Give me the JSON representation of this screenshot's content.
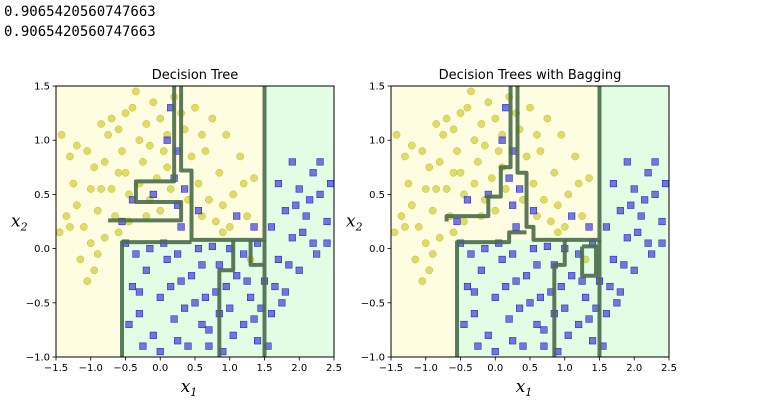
{
  "output_lines": [
    "0.9065420560747663",
    "0.9065420560747663"
  ],
  "colors": {
    "region_class0": "#fefde2",
    "region_class1": "#e2fde3",
    "class0_marker": "#c4c41c",
    "class1_marker": "#3030e0",
    "boundary": "#4a6b4a"
  },
  "chart_data": [
    {
      "type": "scatter",
      "title": "Decision Tree",
      "xlabel": "x1",
      "ylabel": "x2",
      "xlim": [
        -1.5,
        2.5
      ],
      "ylim": [
        -1.0,
        1.5
      ],
      "xticks": [
        "−1.5",
        "−1.0",
        "−0.5",
        "0.0",
        "0.5",
        "1.0",
        "1.5",
        "2.0",
        "2.5"
      ],
      "yticks": [
        "−1.0",
        "−0.5",
        "0.0",
        "0.5",
        "1.0",
        "1.5"
      ],
      "boundary": [
        [
          [
            0.2,
            1.5
          ],
          [
            0.2,
            0.62
          ],
          [
            -0.35,
            0.62
          ],
          [
            -0.35,
            0.43
          ],
          [
            0.3,
            0.43
          ],
          [
            0.3,
            0.26
          ],
          [
            -0.75,
            0.26
          ]
        ],
        [
          [
            0.3,
            1.5
          ],
          [
            0.3,
            0.72
          ],
          [
            0.45,
            0.72
          ],
          [
            0.45,
            0.26
          ],
          [
            0.45,
            0.08
          ],
          [
            1.5,
            0.08
          ],
          [
            1.5,
            1.5
          ]
        ],
        [
          [
            -0.55,
            -1.0
          ],
          [
            -0.55,
            0.06
          ],
          [
            0.45,
            0.06
          ]
        ],
        [
          [
            1.5,
            0.08
          ],
          [
            1.5,
            -1.0
          ]
        ],
        [
          [
            0.85,
            -1.0
          ],
          [
            0.85,
            -0.2
          ],
          [
            1.05,
            -0.2
          ],
          [
            1.05,
            0.08
          ]
        ],
        [
          [
            1.3,
            0.08
          ],
          [
            1.3,
            -0.15
          ],
          [
            1.5,
            -0.15
          ]
        ]
      ],
      "series": [
        {
          "marker": "circle",
          "values": "class0"
        },
        {
          "marker": "square",
          "values": "class1"
        }
      ]
    },
    {
      "type": "scatter",
      "title": "Decision Trees with Bagging",
      "xlabel": "x1",
      "ylabel": "x2",
      "xlim": [
        -1.5,
        2.5
      ],
      "ylim": [
        -1.0,
        1.5
      ],
      "xticks": [
        "−1.5",
        "−1.0",
        "−0.5",
        "0.0",
        "0.5",
        "1.0",
        "1.5",
        "2.0",
        "2.5"
      ],
      "yticks": [
        "−1.0",
        "−0.5",
        "0.0",
        "0.5",
        "1.0",
        "1.5"
      ],
      "boundary": [
        [
          [
            0.22,
            1.5
          ],
          [
            0.22,
            0.75
          ],
          [
            0.08,
            0.75
          ],
          [
            0.08,
            0.48
          ],
          [
            -0.1,
            0.48
          ],
          [
            -0.1,
            0.3
          ],
          [
            -0.7,
            0.3
          ],
          [
            -0.7,
            0.25
          ]
        ],
        [
          [
            0.32,
            1.5
          ],
          [
            0.32,
            0.7
          ],
          [
            0.45,
            0.7
          ],
          [
            0.45,
            0.2
          ],
          [
            0.55,
            0.2
          ],
          [
            0.55,
            0.08
          ],
          [
            1.5,
            0.08
          ],
          [
            1.5,
            1.5
          ]
        ],
        [
          [
            -0.55,
            -1.0
          ],
          [
            -0.55,
            0.06
          ],
          [
            0.2,
            0.06
          ],
          [
            0.2,
            0.15
          ],
          [
            0.45,
            0.15
          ]
        ],
        [
          [
            1.5,
            0.08
          ],
          [
            1.5,
            -1.0
          ]
        ],
        [
          [
            0.85,
            -1.0
          ],
          [
            0.85,
            -0.15
          ],
          [
            1.0,
            -0.15
          ],
          [
            1.0,
            0.08
          ]
        ],
        [
          [
            1.25,
            0.02
          ],
          [
            1.25,
            -0.25
          ],
          [
            1.45,
            -0.25
          ],
          [
            1.45,
            0.02
          ],
          [
            1.25,
            0.02
          ]
        ]
      ],
      "series": [
        {
          "marker": "circle",
          "values": "class0"
        },
        {
          "marker": "square",
          "values": "class1"
        }
      ]
    }
  ],
  "points": {
    "class0": [
      [
        -1.42,
        1.05
      ],
      [
        -1.3,
        0.85
      ],
      [
        -1.25,
        0.6
      ],
      [
        -1.35,
        0.3
      ],
      [
        -1.45,
        0.15
      ],
      [
        -1.2,
        0.4
      ],
      [
        -1.1,
        0.2
      ],
      [
        -1.0,
        0.05
      ],
      [
        -1.15,
        -0.1
      ],
      [
        -1.05,
        -0.3
      ],
      [
        -0.95,
        -0.2
      ],
      [
        -0.9,
        0.35
      ],
      [
        -0.85,
        0.55
      ],
      [
        -0.8,
        0.8
      ],
      [
        -0.75,
        1.05
      ],
      [
        -0.7,
        1.2
      ],
      [
        -0.6,
        1.1
      ],
      [
        -0.55,
        0.9
      ],
      [
        -0.5,
        0.7
      ],
      [
        -0.45,
        0.5
      ],
      [
        -0.4,
        1.3
      ],
      [
        -0.35,
        1.45
      ],
      [
        -0.3,
        1.0
      ],
      [
        -0.25,
        0.8
      ],
      [
        -0.2,
        1.15
      ],
      [
        -0.15,
        0.95
      ],
      [
        -0.1,
        1.35
      ],
      [
        -0.05,
        0.65
      ],
      [
        0.0,
        1.2
      ],
      [
        0.05,
        0.9
      ],
      [
        0.1,
        1.05
      ],
      [
        0.15,
        0.55
      ],
      [
        0.0,
        0.35
      ],
      [
        -0.2,
        0.3
      ],
      [
        -0.45,
        0.25
      ],
      [
        -0.65,
        0.3
      ],
      [
        -0.7,
        0.55
      ],
      [
        -0.95,
        0.75
      ],
      [
        -1.2,
        0.95
      ],
      [
        -0.85,
        1.15
      ],
      [
        -0.5,
        1.25
      ],
      [
        0.2,
        1.4
      ],
      [
        0.35,
        1.1
      ],
      [
        0.45,
        0.85
      ],
      [
        0.55,
        0.6
      ],
      [
        0.65,
        0.9
      ],
      [
        0.75,
        1.2
      ],
      [
        0.85,
        0.7
      ],
      [
        0.95,
        1.05
      ],
      [
        1.05,
        0.5
      ],
      [
        1.15,
        0.85
      ],
      [
        1.25,
        0.3
      ],
      [
        1.35,
        0.65
      ],
      [
        0.6,
        0.3
      ],
      [
        0.8,
        0.25
      ],
      [
        1.0,
        0.2
      ],
      [
        0.5,
        1.3
      ],
      [
        0.7,
        0.45
      ],
      [
        0.9,
        0.4
      ],
      [
        -0.3,
        0.6
      ],
      [
        -0.6,
        0.7
      ],
      [
        -1.0,
        0.55
      ],
      [
        -0.8,
        0.1
      ],
      [
        -0.6,
        0.15
      ],
      [
        1.3,
        -0.1
      ],
      [
        0.9,
        0.15
      ],
      [
        0.4,
        0.45
      ],
      [
        0.1,
        0.75
      ],
      [
        -0.15,
        0.45
      ],
      [
        0.3,
        1.25
      ],
      [
        -1.3,
        0.2
      ],
      [
        -0.9,
        -0.05
      ],
      [
        -1.05,
        0.9
      ],
      [
        0.6,
        1.05
      ],
      [
        1.2,
        0.6
      ]
    ],
    "class1": [
      [
        -0.4,
        -0.35
      ],
      [
        -0.3,
        -0.6
      ],
      [
        -0.2,
        -0.2
      ],
      [
        -0.1,
        -0.8
      ],
      [
        0.0,
        -0.45
      ],
      [
        0.1,
        -0.1
      ],
      [
        0.2,
        -0.65
      ],
      [
        0.3,
        -0.3
      ],
      [
        0.4,
        -0.9
      ],
      [
        0.5,
        -0.5
      ],
      [
        0.6,
        -0.15
      ],
      [
        0.7,
        -0.75
      ],
      [
        0.8,
        -0.4
      ],
      [
        0.9,
        -0.95
      ],
      [
        1.0,
        -0.55
      ],
      [
        1.1,
        -0.25
      ],
      [
        1.2,
        -0.7
      ],
      [
        1.3,
        -0.45
      ],
      [
        1.4,
        -0.85
      ],
      [
        1.5,
        -0.3
      ],
      [
        1.6,
        -0.6
      ],
      [
        1.7,
        -0.1
      ],
      [
        1.8,
        -0.4
      ],
      [
        1.9,
        0.1
      ],
      [
        2.0,
        -0.2
      ],
      [
        2.1,
        0.3
      ],
      [
        2.2,
        0.05
      ],
      [
        2.3,
        0.5
      ],
      [
        2.4,
        0.25
      ],
      [
        2.2,
        0.7
      ],
      [
        2.0,
        0.55
      ],
      [
        1.8,
        0.35
      ],
      [
        1.6,
        0.2
      ],
      [
        1.9,
        0.8
      ],
      [
        1.7,
        0.6
      ],
      [
        2.3,
        0.8
      ],
      [
        2.45,
        0.6
      ],
      [
        -0.5,
        0.05
      ],
      [
        -0.35,
        -0.05
      ],
      [
        -0.15,
        0.0
      ],
      [
        0.05,
        0.05
      ],
      [
        0.25,
        -0.05
      ],
      [
        0.55,
        0.0
      ],
      [
        0.75,
        0.02
      ],
      [
        1.0,
        0.0
      ],
      [
        1.2,
        -0.05
      ],
      [
        1.4,
        0.05
      ],
      [
        -0.45,
        -0.7
      ],
      [
        -0.25,
        -0.9
      ],
      [
        0.15,
        -0.35
      ],
      [
        0.35,
        -0.55
      ],
      [
        0.65,
        -0.45
      ],
      [
        0.85,
        -0.6
      ],
      [
        1.05,
        -0.8
      ],
      [
        1.25,
        -0.3
      ],
      [
        1.45,
        -0.55
      ],
      [
        1.65,
        -0.35
      ],
      [
        1.85,
        -0.15
      ],
      [
        2.05,
        0.15
      ],
      [
        2.25,
        -0.05
      ],
      [
        0.0,
        -0.95
      ],
      [
        0.45,
        -0.25
      ],
      [
        0.95,
        -0.35
      ],
      [
        1.55,
        -0.9
      ],
      [
        0.7,
        -0.9
      ],
      [
        0.25,
        -0.85
      ],
      [
        0.85,
        -0.15
      ],
      [
        1.35,
        -0.65
      ],
      [
        1.75,
        -0.5
      ],
      [
        0.2,
        0.65
      ],
      [
        -0.1,
        0.5
      ],
      [
        0.25,
        0.9
      ],
      [
        0.1,
        1.0
      ],
      [
        0.25,
        0.4
      ],
      [
        0.35,
        0.55
      ],
      [
        -0.4,
        0.45
      ],
      [
        -0.55,
        0.25
      ],
      [
        0.15,
        1.3
      ],
      [
        0.3,
        0.2
      ],
      [
        0.55,
        0.35
      ],
      [
        1.1,
        0.3
      ],
      [
        1.35,
        0.2
      ],
      [
        -0.3,
        -0.4
      ],
      [
        0.6,
        -0.7
      ],
      [
        2.15,
        0.45
      ],
      [
        1.95,
        0.4
      ],
      [
        2.4,
        0.05
      ]
    ]
  }
}
